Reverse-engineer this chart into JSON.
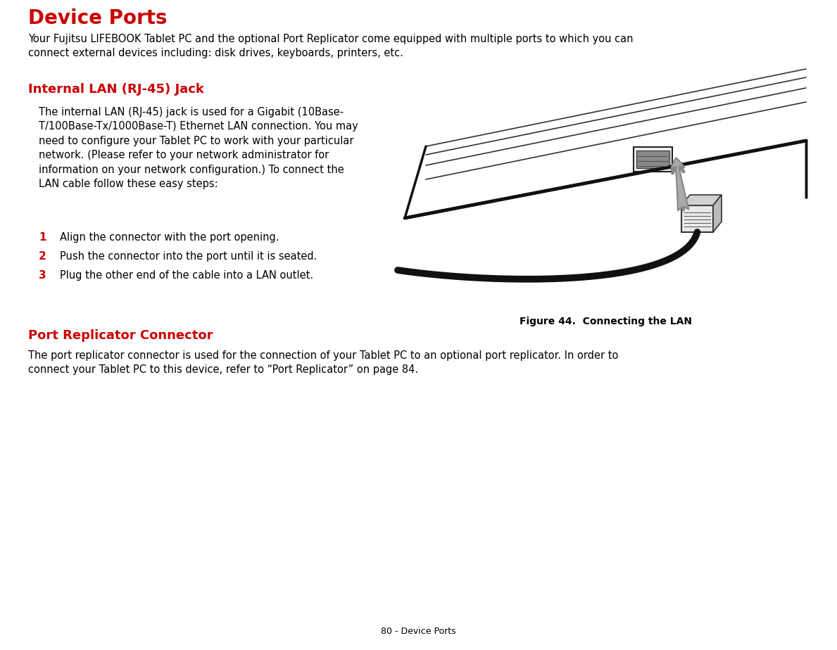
{
  "title": "Device Ports",
  "title_color": "#CC0000",
  "page_bg": "#ffffff",
  "intro_text": "Your Fujitsu LIFEBOOK Tablet PC and the optional Port Replicator come equipped with multiple ports to which you can\nconnect external devices including: disk drives, keyboards, printers, etc.",
  "section1_title": "Internal LAN (RJ-45) Jack",
  "section1_color": "#CC0000",
  "section1_body": "The internal LAN (RJ-45) jack is used for a Gigabit (10Base-\nT/100Base-Tx/1000Base-T) Ethernet LAN connection. You may\nneed to configure your Tablet PC to work with your particular\nnetwork. (Please refer to your network administrator for\ninformation on your network configuration.) To connect the\nLAN cable follow these easy steps:",
  "steps": [
    {
      "num": "1",
      "text": "Align the connector with the port opening."
    },
    {
      "num": "2",
      "text": "Push the connector into the port until it is seated."
    },
    {
      "num": "3",
      "text": "Plug the other end of the cable into a LAN outlet."
    }
  ],
  "figure_caption": "Figure 44.  Connecting the LAN",
  "section2_title": "Port Replicator Connector",
  "section2_color": "#CC0000",
  "section2_body": "The port replicator connector is used for the connection of your Tablet PC to an optional port replicator. In order to\nconnect your Tablet PC to this device, refer to “Port Replicator” on page 84.",
  "footer_text": "80 - Device Ports",
  "text_color": "#000000"
}
